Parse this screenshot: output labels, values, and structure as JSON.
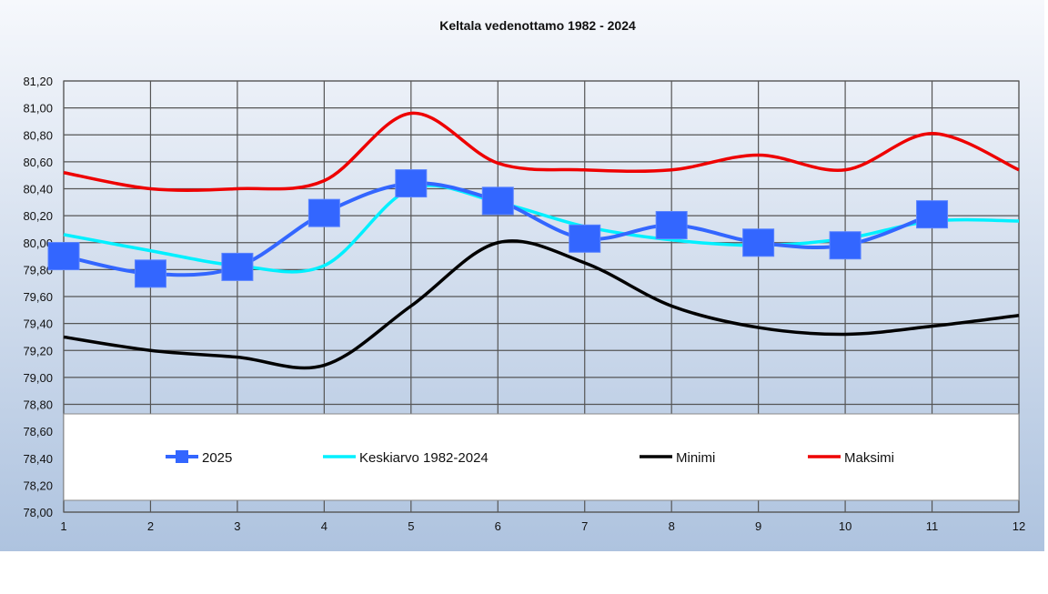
{
  "chart_data": {
    "type": "line",
    "title": "Keltala vedenottamo 1982 - 2024",
    "xlabel": "",
    "ylabel": "",
    "x": [
      1,
      2,
      3,
      4,
      5,
      6,
      7,
      8,
      9,
      10,
      11,
      12
    ],
    "ylim": [
      78.0,
      81.2
    ],
    "yticks": [
      "78,00",
      "78,20",
      "78,40",
      "78,60",
      "78,80",
      "79,00",
      "79,20",
      "79,40",
      "79,60",
      "79,80",
      "80,00",
      "80,20",
      "80,40",
      "80,60",
      "80,80",
      "81,00",
      "81,20"
    ],
    "xticks": [
      "1",
      "2",
      "3",
      "4",
      "5",
      "6",
      "7",
      "8",
      "9",
      "10",
      "11",
      "12"
    ],
    "grid": true,
    "legend_position": "bottom-inside",
    "series": [
      {
        "name": "2025",
        "color": "#3366ff",
        "marker": "square",
        "values": [
          79.9,
          79.77,
          79.82,
          80.22,
          80.44,
          80.31,
          80.03,
          80.13,
          80.0,
          79.98,
          80.21,
          null
        ]
      },
      {
        "name": "Keskiarvo 1982-2024",
        "color": "#00f0ff",
        "marker": "none",
        "values": [
          80.06,
          79.94,
          79.83,
          79.83,
          80.4,
          80.3,
          80.12,
          80.02,
          79.98,
          80.03,
          80.16,
          80.16
        ]
      },
      {
        "name": "Minimi",
        "color": "#000000",
        "marker": "none",
        "values": [
          79.3,
          79.2,
          79.15,
          79.09,
          79.53,
          80.0,
          79.85,
          79.53,
          79.37,
          79.32,
          79.38,
          79.46
        ]
      },
      {
        "name": "Maksimi",
        "color": "#ee0000",
        "marker": "none",
        "values": [
          80.52,
          80.4,
          80.4,
          80.46,
          80.96,
          80.59,
          80.54,
          80.54,
          80.65,
          80.54,
          80.81,
          80.54
        ]
      }
    ]
  }
}
